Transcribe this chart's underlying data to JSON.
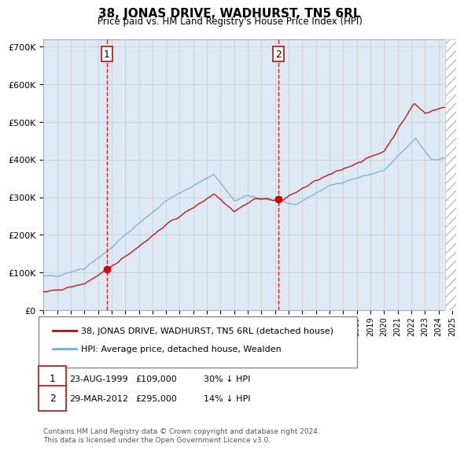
{
  "title": "38, JONAS DRIVE, WADHURST, TN5 6RL",
  "subtitle": "Price paid vs. HM Land Registry's House Price Index (HPI)",
  "legend_line1": "38, JONAS DRIVE, WADHURST, TN5 6RL (detached house)",
  "legend_line2": "HPI: Average price, detached house, Wealden",
  "annotation1_date": "23-AUG-1999",
  "annotation1_price": "£109,000",
  "annotation1_hpi": "30% ↓ HPI",
  "annotation2_date": "29-MAR-2012",
  "annotation2_price": "£295,000",
  "annotation2_hpi": "14% ↓ HPI",
  "footer": "Contains HM Land Registry data © Crown copyright and database right 2024.\nThis data is licensed under the Open Government Licence v3.0.",
  "red_color": "#cc0000",
  "blue_color": "#7aadcf",
  "background_color": "#ddeaf5",
  "ylim": [
    0,
    720000
  ],
  "yticks": [
    0,
    100000,
    200000,
    300000,
    400000,
    500000,
    600000,
    700000
  ],
  "purchase1_date_num": 1999.64,
  "purchase1_value_red": 109000,
  "purchase2_date_num": 2012.24,
  "purchase2_value_red": 295000,
  "hatch_start": 2024.5,
  "xmin": 1995.0,
  "xmax": 2025.3
}
